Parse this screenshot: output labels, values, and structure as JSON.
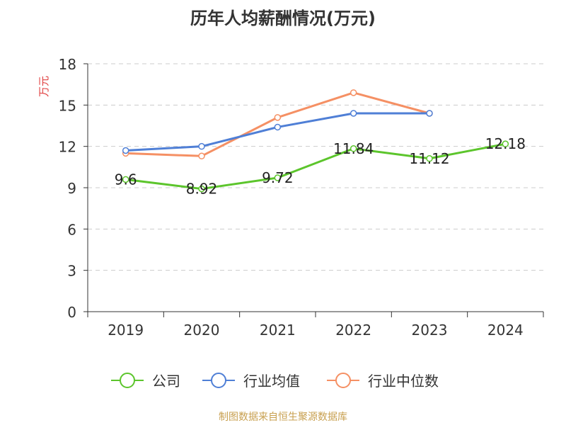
{
  "title": "历年人均薪酬情况(万元)",
  "footer": "制图数据来自恒生聚源数据库",
  "colors": {
    "company": "#5cc52c",
    "industry_avg": "#4f7fd6",
    "industry_median": "#f59064",
    "unit_label": "#e04040",
    "footer": "#c8a050",
    "axis": "#333333",
    "grid": "#cccccc"
  },
  "chart_data": {
    "type": "line",
    "ylabel": "万元",
    "ylim": [
      0,
      18
    ],
    "yticks": [
      0,
      3,
      6,
      9,
      12,
      15,
      18
    ],
    "categories": [
      "2019",
      "2020",
      "2021",
      "2022",
      "2023",
      "2024"
    ],
    "grid": true,
    "legend_position": "bottom",
    "series": [
      {
        "name": "公司",
        "color_key": "company",
        "values": [
          9.6,
          8.92,
          9.72,
          11.84,
          11.12,
          12.18
        ],
        "labels": [
          "9.6",
          "8.92",
          "9.72",
          "11.84",
          "11.12",
          "12.18"
        ]
      },
      {
        "name": "行业均值",
        "color_key": "industry_avg",
        "values": [
          11.7,
          12.0,
          13.4,
          14.4,
          14.4,
          null
        ]
      },
      {
        "name": "行业中位数",
        "color_key": "industry_median",
        "values": [
          11.5,
          11.3,
          14.1,
          15.9,
          14.4,
          null
        ]
      }
    ]
  }
}
